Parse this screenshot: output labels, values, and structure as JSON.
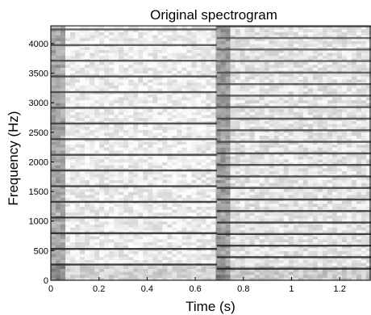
{
  "chart_data": {
    "type": "heatmap",
    "title": "Original spectrogram",
    "xlabel": "Time (s)",
    "ylabel": "Frequency (Hz)",
    "xlim": [
      0,
      1.33
    ],
    "ylim": [
      0,
      4300
    ],
    "x_ticks": [
      {
        "value": 0,
        "label": "0"
      },
      {
        "value": 0.2,
        "label": "0.2"
      },
      {
        "value": 0.4,
        "label": "0.4"
      },
      {
        "value": 0.6,
        "label": "0.6"
      },
      {
        "value": 0.8,
        "label": "0.8"
      },
      {
        "value": 1.0,
        "label": "1"
      },
      {
        "value": 1.2,
        "label": "1.2"
      }
    ],
    "y_ticks": [
      {
        "value": 0,
        "label": "0"
      },
      {
        "value": 500,
        "label": "500"
      },
      {
        "value": 1000,
        "label": "1000"
      },
      {
        "value": 1500,
        "label": "1500"
      },
      {
        "value": 2000,
        "label": "2000"
      },
      {
        "value": 2500,
        "label": "2500"
      },
      {
        "value": 3000,
        "label": "3000"
      },
      {
        "value": 3500,
        "label": "3500"
      },
      {
        "value": 4000,
        "label": "4000"
      }
    ],
    "colormap": "grayscale (dark = high energy)",
    "segments": [
      {
        "t_start": 0.0,
        "t_end": 0.69,
        "fundamental_hz": 265,
        "onset_dark_until": 0.06
      },
      {
        "t_start": 0.69,
        "t_end": 1.33,
        "fundamental_hz": 195,
        "onset_dark_until": 0.75
      }
    ]
  }
}
